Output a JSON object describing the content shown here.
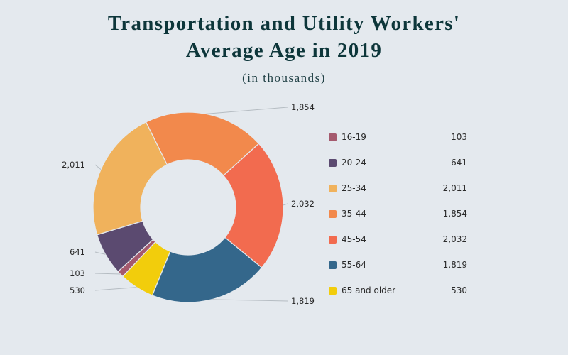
{
  "chart_data": {
    "type": "pie",
    "variant": "donut",
    "title_line1": "Transportation and Utility Workers'",
    "title_line2": "Average Age in 2019",
    "subtitle": "(in thousands)",
    "categories": [
      "16-19",
      "20-24",
      "25-34",
      "35-44",
      "45-54",
      "55-64",
      "65 and older"
    ],
    "values": [
      103,
      641,
      2011,
      1854,
      2032,
      1819,
      530
    ],
    "value_labels": [
      "103",
      "641",
      "2,011",
      "1,854",
      "2,032",
      "1,819",
      "530"
    ],
    "colors": [
      "#a55a6e",
      "#5b4a70",
      "#f0b25c",
      "#f2894c",
      "#f26b4f",
      "#34678b",
      "#f2cd0c"
    ],
    "legend_position": "right",
    "direction": "clockwise"
  }
}
